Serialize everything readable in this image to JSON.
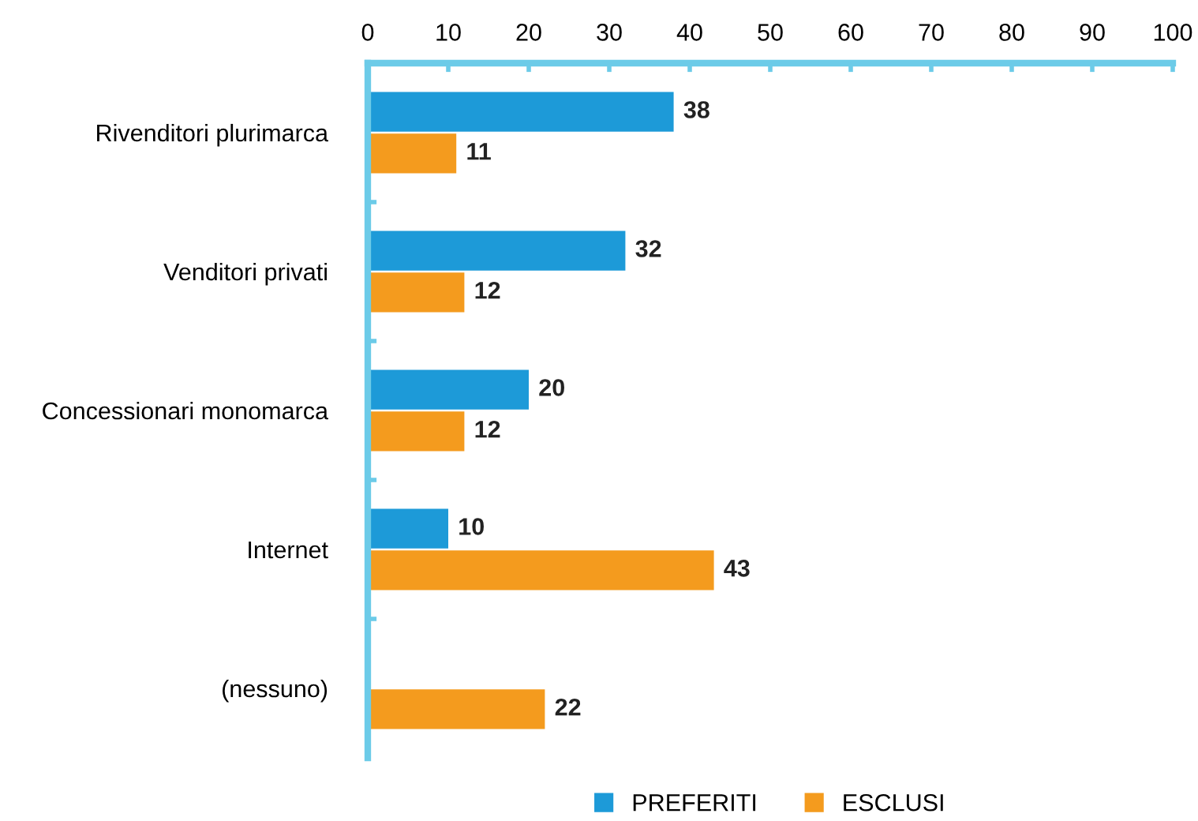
{
  "chart_data": {
    "type": "bar",
    "orientation": "horizontal",
    "categories": [
      "Rivenditori plurimarca",
      "Venditori privati",
      "Concessionari monomarca",
      "Internet",
      "(nessuno)"
    ],
    "series": [
      {
        "name": "PREFERITI",
        "color": "#1d9ad8",
        "values": [
          38,
          32,
          20,
          10,
          null
        ]
      },
      {
        "name": "ESCLUSI",
        "color": "#f49b1e",
        "values": [
          11,
          12,
          12,
          43,
          22
        ]
      }
    ],
    "xlim": [
      0,
      100
    ],
    "xticks": [
      0,
      10,
      20,
      30,
      40,
      50,
      60,
      70,
      80,
      90,
      100
    ],
    "grid": false,
    "legend": "bottom",
    "data_labels": true
  }
}
